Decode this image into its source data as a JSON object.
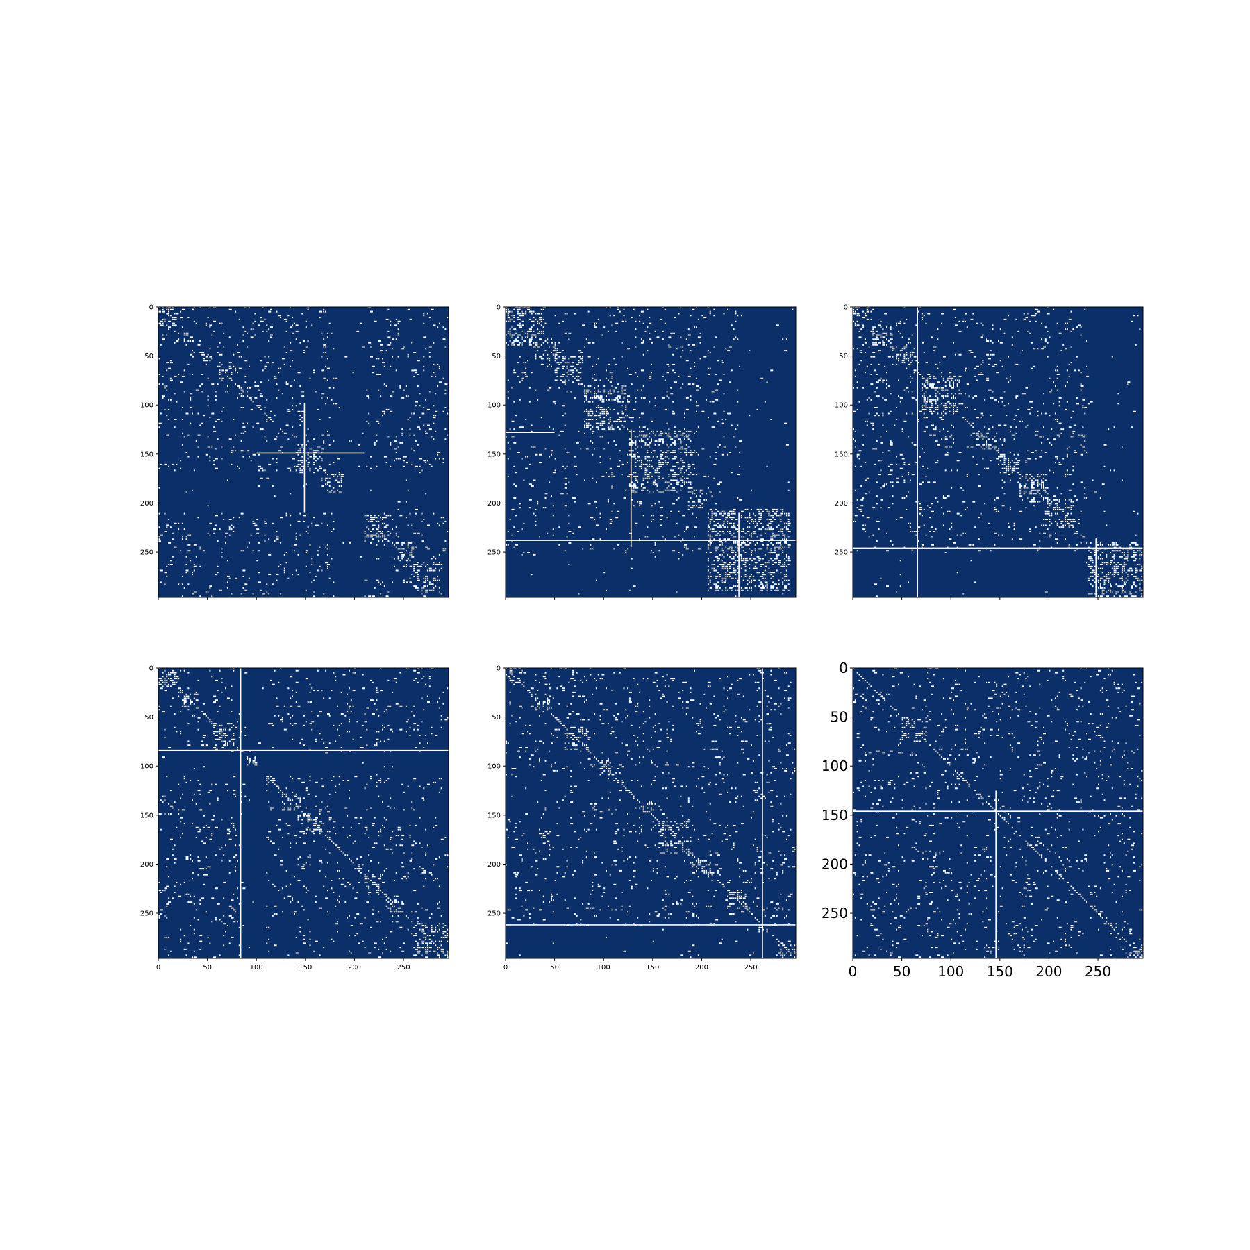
{
  "figure": {
    "background": "#ffffff",
    "matrix_color": "#0b3069",
    "mark_color": "#ffffff"
  },
  "chart_data": [
    {
      "type": "heatmap",
      "title": "",
      "xlabel": "",
      "ylabel": "",
      "xlim": [
        0,
        296
      ],
      "ylim": [
        296,
        0
      ],
      "grid": false,
      "x_ticks": [],
      "y_ticks": [
        "0",
        "50",
        "100",
        "150",
        "200",
        "250"
      ],
      "x_ticks_shown": false,
      "blocks": [
        [
          0,
          20
        ],
        [
          25,
          35
        ],
        [
          45,
          55
        ],
        [
          60,
          75
        ],
        [
          140,
          170
        ],
        [
          165,
          190
        ],
        [
          210,
          240
        ],
        [
          240,
          260
        ],
        [
          260,
          290
        ]
      ],
      "diagonal": [
        [
          60,
          130
        ]
      ],
      "white_lines": [
        {
          "orient": "h",
          "pos": 149,
          "from": 100,
          "to": 210
        },
        {
          "orient": "v",
          "pos": 149,
          "from": 98,
          "to": 210
        }
      ],
      "dark_bands": [
        {
          "orient": "h",
          "from": 168,
          "to": 210
        },
        {
          "orient": "v",
          "from": 200,
          "to": 212
        },
        {
          "orient": "v",
          "from": 180,
          "to": 210
        }
      ],
      "density": 0.06,
      "seed": 11
    },
    {
      "type": "heatmap",
      "title": "",
      "xlabel": "",
      "ylabel": "",
      "xlim": [
        0,
        296
      ],
      "ylim": [
        296,
        0
      ],
      "grid": false,
      "x_ticks": [],
      "y_ticks": [
        "0",
        "50",
        "100",
        "150",
        "200",
        "250"
      ],
      "x_ticks_shown": false,
      "blocks": [
        [
          0,
          40
        ],
        [
          30,
          55
        ],
        [
          50,
          80
        ],
        [
          80,
          125
        ],
        [
          125,
          190
        ],
        [
          185,
          205
        ],
        [
          205,
          290
        ]
      ],
      "diagonal": [],
      "white_lines": [
        {
          "orient": "h",
          "pos": 128,
          "from": 0,
          "to": 50
        },
        {
          "orient": "h",
          "pos": 238,
          "from": 0,
          "to": 296
        },
        {
          "orient": "v",
          "pos": 238,
          "from": 210,
          "to": 296
        },
        {
          "orient": "v",
          "pos": 128,
          "from": 125,
          "to": 245
        }
      ],
      "dark_bands": [
        {
          "orient": "h",
          "from": 255,
          "to": 296
        },
        {
          "orient": "v",
          "from": 240,
          "to": 296
        }
      ],
      "density": 0.05,
      "seed": 23
    },
    {
      "type": "heatmap",
      "title": "",
      "xlabel": "",
      "ylabel": "",
      "xlim": [
        0,
        296
      ],
      "ylim": [
        296,
        0
      ],
      "grid": false,
      "x_ticks": [],
      "y_ticks": [
        "0",
        "50",
        "100",
        "150",
        "200",
        "250"
      ],
      "x_ticks_shown": false,
      "blocks": [
        [
          0,
          20
        ],
        [
          20,
          40
        ],
        [
          40,
          60
        ],
        [
          70,
          110
        ],
        [
          125,
          145
        ],
        [
          150,
          170
        ],
        [
          170,
          200
        ],
        [
          195,
          225
        ],
        [
          240,
          296
        ]
      ],
      "diagonal": [
        [
          65,
          240
        ]
      ],
      "white_lines": [
        {
          "orient": "h",
          "pos": 246,
          "from": 0,
          "to": 296
        },
        {
          "orient": "v",
          "pos": 248,
          "from": 236,
          "to": 296
        },
        {
          "orient": "v",
          "pos": 66,
          "from": 0,
          "to": 296
        }
      ],
      "dark_bands": [
        {
          "orient": "v",
          "from": 240,
          "to": 296
        },
        {
          "orient": "h",
          "from": 250,
          "to": 296
        }
      ],
      "density": 0.055,
      "seed": 37
    },
    {
      "type": "heatmap",
      "title": "",
      "xlabel": "",
      "ylabel": "",
      "xlim": [
        0,
        296
      ],
      "ylim": [
        296,
        0
      ],
      "grid": false,
      "x_ticks": [
        "0",
        "50",
        "100",
        "150",
        "200",
        "250"
      ],
      "y_ticks": [
        "0",
        "50",
        "100",
        "150",
        "200",
        "250"
      ],
      "x_ticks_shown": true,
      "blocks": [
        [
          0,
          20
        ],
        [
          20,
          40
        ],
        [
          55,
          80
        ],
        [
          90,
          100
        ],
        [
          110,
          120
        ],
        [
          125,
          145
        ],
        [
          145,
          170
        ],
        [
          200,
          210
        ],
        [
          210,
          230
        ],
        [
          235,
          250
        ],
        [
          260,
          296
        ]
      ],
      "diagonal": [
        [
          0,
          296
        ]
      ],
      "white_lines": [
        {
          "orient": "h",
          "pos": 84,
          "from": 0,
          "to": 296
        },
        {
          "orient": "v",
          "pos": 84,
          "from": 0,
          "to": 296
        }
      ],
      "dark_bands": [
        {
          "orient": "h",
          "from": 86,
          "to": 110
        },
        {
          "orient": "v",
          "from": 86,
          "to": 110
        }
      ],
      "density": 0.055,
      "seed": 51
    },
    {
      "type": "heatmap",
      "title": "",
      "xlabel": "",
      "ylabel": "",
      "xlim": [
        0,
        296
      ],
      "ylim": [
        296,
        0
      ],
      "grid": false,
      "x_ticks": [
        "0",
        "50",
        "100",
        "150",
        "200",
        "250"
      ],
      "y_ticks": [
        "0",
        "50",
        "100",
        "150",
        "200",
        "250"
      ],
      "x_ticks_shown": true,
      "blocks": [
        [
          0,
          15
        ],
        [
          30,
          45
        ],
        [
          60,
          85
        ],
        [
          95,
          110
        ],
        [
          135,
          150
        ],
        [
          155,
          190
        ],
        [
          190,
          210
        ],
        [
          225,
          245
        ],
        [
          255,
          270
        ],
        [
          275,
          296
        ]
      ],
      "diagonal": [
        [
          0,
          296
        ]
      ],
      "white_lines": [
        {
          "orient": "h",
          "pos": 262,
          "from": 0,
          "to": 296
        },
        {
          "orient": "v",
          "pos": 262,
          "from": 0,
          "to": 296
        }
      ],
      "dark_bands": [
        {
          "orient": "h",
          "from": 264,
          "to": 296
        }
      ],
      "density": 0.05,
      "seed": 67
    },
    {
      "type": "heatmap",
      "title": "",
      "xlabel": "",
      "ylabel": "",
      "xlim": [
        0,
        296
      ],
      "ylim": [
        296,
        0
      ],
      "grid": false,
      "x_ticks": [
        "0",
        "50",
        "100",
        "150",
        "200",
        "250"
      ],
      "y_ticks": [
        "0",
        "50",
        "100",
        "150",
        "200",
        "250"
      ],
      "x_ticks_shown": true,
      "blocks": [
        [
          50,
          75
        ],
        [
          280,
          296
        ]
      ],
      "diagonal": [
        [
          0,
          296
        ]
      ],
      "white_lines": [
        {
          "orient": "h",
          "pos": 146,
          "from": 0,
          "to": 296
        },
        {
          "orient": "v",
          "pos": 146,
          "from": 125,
          "to": 296
        }
      ],
      "dark_bands": [],
      "density": 0.05,
      "seed": 83
    }
  ]
}
